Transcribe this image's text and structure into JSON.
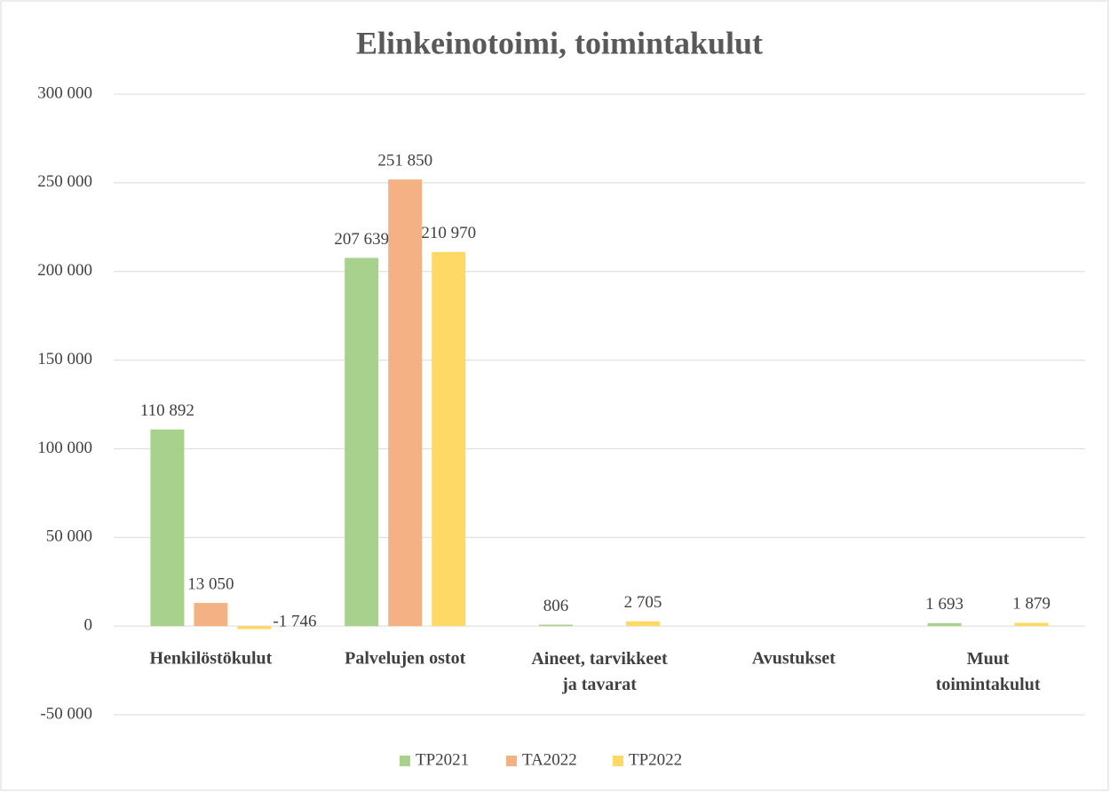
{
  "chart_data": {
    "type": "bar",
    "title": "Elinkeinotoimi, toimintakulut",
    "categories": [
      "Henkilöstökulut",
      "Palvelujen ostot",
      "Aineet, tarvikkeet ja tavarat",
      "Avustukset",
      "Muut toimintakulut"
    ],
    "series": [
      {
        "name": "TP2021",
        "color": "#a9d18e",
        "values": [
          110892,
          207639,
          806,
          null,
          1693
        ],
        "value_labels": [
          "110 892",
          "207 639",
          "806",
          null,
          "1 693"
        ]
      },
      {
        "name": "TA2022",
        "color": "#f4b183",
        "values": [
          13050,
          251850,
          null,
          null,
          null
        ],
        "value_labels": [
          "13 050",
          "251 850",
          null,
          null,
          null
        ]
      },
      {
        "name": "TP2022",
        "color": "#ffd966",
        "values": [
          -1746,
          210970,
          2705,
          null,
          1879
        ],
        "value_labels": [
          "-1 746",
          "210 970",
          "2 705",
          null,
          "1 879"
        ]
      }
    ],
    "ylim": [
      -50000,
      300000
    ],
    "yticks": [
      {
        "value": -50000,
        "label": "-50 000"
      },
      0,
      {
        "value": 50000,
        "label": "50 000"
      },
      {
        "value": 100000,
        "label": "100 000"
      },
      {
        "value": 150000,
        "label": "150 000"
      },
      {
        "value": 200000,
        "label": "200 000"
      },
      {
        "value": 250000,
        "label": "250 000"
      },
      {
        "value": 300000,
        "label": "300 000"
      }
    ],
    "grid": true,
    "legend": "bottom"
  }
}
